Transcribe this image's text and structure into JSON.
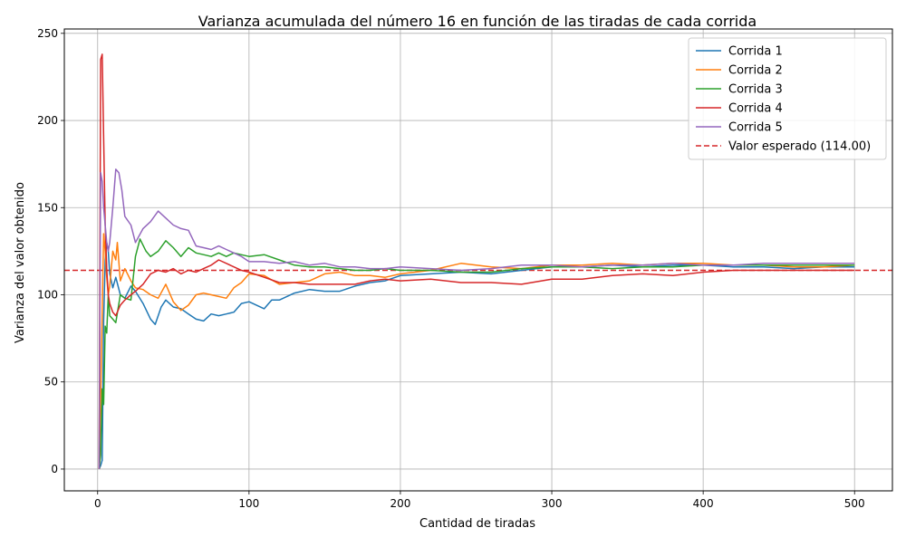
{
  "chart_data": {
    "type": "line",
    "title": "Varianza acumulada del número 16 en función de las tiradas de cada corrida",
    "xlabel": "Cantidad de tiradas",
    "ylabel": "Varianza del valor obtenido",
    "xlim": [
      -22,
      525
    ],
    "ylim": [
      -12.5,
      252.5
    ],
    "xticks": [
      0,
      100,
      200,
      300,
      400,
      500
    ],
    "yticks": [
      0,
      50,
      100,
      150,
      200,
      250
    ],
    "grid": true,
    "legend_position": "top-right",
    "reference_line": {
      "label": "Valor esperado (114.00)",
      "y": 114.0,
      "color": "#d62728",
      "style": "dashed"
    },
    "series": [
      {
        "name": "Corrida 1",
        "color": "#1f77b4",
        "points": [
          [
            1,
            0
          ],
          [
            2,
            2
          ],
          [
            3,
            5
          ],
          [
            4,
            85
          ],
          [
            5,
            120
          ],
          [
            6,
            130
          ],
          [
            7,
            125
          ],
          [
            8,
            112
          ],
          [
            10,
            104
          ],
          [
            12,
            110
          ],
          [
            15,
            100
          ],
          [
            18,
            98
          ],
          [
            22,
            105
          ],
          [
            25,
            102
          ],
          [
            30,
            95
          ],
          [
            35,
            86
          ],
          [
            38,
            83
          ],
          [
            42,
            93
          ],
          [
            45,
            97
          ],
          [
            50,
            93
          ],
          [
            55,
            92
          ],
          [
            60,
            89
          ],
          [
            65,
            86
          ],
          [
            70,
            85
          ],
          [
            75,
            89
          ],
          [
            80,
            88
          ],
          [
            85,
            89
          ],
          [
            90,
            90
          ],
          [
            95,
            95
          ],
          [
            100,
            96
          ],
          [
            110,
            92
          ],
          [
            115,
            97
          ],
          [
            120,
            97
          ],
          [
            130,
            101
          ],
          [
            140,
            103
          ],
          [
            150,
            102
          ],
          [
            160,
            102
          ],
          [
            170,
            105
          ],
          [
            180,
            107
          ],
          [
            190,
            108
          ],
          [
            200,
            111
          ],
          [
            220,
            112
          ],
          [
            240,
            113
          ],
          [
            260,
            112
          ],
          [
            280,
            114
          ],
          [
            300,
            116
          ],
          [
            320,
            116
          ],
          [
            340,
            117
          ],
          [
            360,
            116
          ],
          [
            380,
            117
          ],
          [
            400,
            117
          ],
          [
            420,
            116
          ],
          [
            440,
            116
          ],
          [
            460,
            115
          ],
          [
            480,
            116
          ],
          [
            500,
            116
          ]
        ]
      },
      {
        "name": "Corrida 2",
        "color": "#ff7f0e",
        "points": [
          [
            1,
            0
          ],
          [
            2,
            40
          ],
          [
            3,
            90
          ],
          [
            4,
            135
          ],
          [
            5,
            125
          ],
          [
            6,
            110
          ],
          [
            7,
            100
          ],
          [
            8,
            105
          ],
          [
            10,
            125
          ],
          [
            12,
            120
          ],
          [
            13,
            130
          ],
          [
            15,
            108
          ],
          [
            18,
            115
          ],
          [
            22,
            108
          ],
          [
            25,
            104
          ],
          [
            30,
            103
          ],
          [
            35,
            100
          ],
          [
            40,
            98
          ],
          [
            45,
            106
          ],
          [
            50,
            96
          ],
          [
            55,
            91
          ],
          [
            60,
            94
          ],
          [
            65,
            100
          ],
          [
            70,
            101
          ],
          [
            80,
            99
          ],
          [
            85,
            98
          ],
          [
            90,
            104
          ],
          [
            95,
            107
          ],
          [
            100,
            112
          ],
          [
            110,
            111
          ],
          [
            120,
            106
          ],
          [
            130,
            107
          ],
          [
            140,
            108
          ],
          [
            150,
            112
          ],
          [
            160,
            113
          ],
          [
            170,
            111
          ],
          [
            180,
            111
          ],
          [
            190,
            110
          ],
          [
            200,
            112
          ],
          [
            220,
            114
          ],
          [
            240,
            118
          ],
          [
            260,
            116
          ],
          [
            280,
            115
          ],
          [
            300,
            117
          ],
          [
            320,
            117
          ],
          [
            340,
            118
          ],
          [
            360,
            117
          ],
          [
            380,
            118
          ],
          [
            400,
            118
          ],
          [
            420,
            117
          ],
          [
            440,
            117
          ],
          [
            460,
            116
          ],
          [
            480,
            116
          ],
          [
            500,
            117
          ]
        ]
      },
      {
        "name": "Corrida 3",
        "color": "#2ca02c",
        "points": [
          [
            1,
            0
          ],
          [
            2,
            8
          ],
          [
            3,
            46
          ],
          [
            4,
            37
          ],
          [
            5,
            82
          ],
          [
            6,
            78
          ],
          [
            7,
            100
          ],
          [
            8,
            88
          ],
          [
            10,
            86
          ],
          [
            12,
            84
          ],
          [
            15,
            100
          ],
          [
            18,
            98
          ],
          [
            22,
            97
          ],
          [
            25,
            122
          ],
          [
            28,
            132
          ],
          [
            32,
            125
          ],
          [
            35,
            122
          ],
          [
            40,
            125
          ],
          [
            45,
            131
          ],
          [
            50,
            127
          ],
          [
            55,
            122
          ],
          [
            60,
            127
          ],
          [
            65,
            124
          ],
          [
            70,
            123
          ],
          [
            75,
            122
          ],
          [
            80,
            124
          ],
          [
            85,
            122
          ],
          [
            90,
            124
          ],
          [
            100,
            122
          ],
          [
            110,
            123
          ],
          [
            120,
            120
          ],
          [
            130,
            117
          ],
          [
            140,
            116
          ],
          [
            150,
            116
          ],
          [
            160,
            115
          ],
          [
            170,
            114
          ],
          [
            180,
            114
          ],
          [
            190,
            115
          ],
          [
            200,
            114
          ],
          [
            220,
            114
          ],
          [
            240,
            113
          ],
          [
            260,
            113
          ],
          [
            280,
            115
          ],
          [
            300,
            116
          ],
          [
            320,
            116
          ],
          [
            340,
            115
          ],
          [
            360,
            116
          ],
          [
            380,
            116
          ],
          [
            400,
            117
          ],
          [
            420,
            117
          ],
          [
            440,
            117
          ],
          [
            460,
            117
          ],
          [
            480,
            117
          ],
          [
            500,
            117
          ]
        ]
      },
      {
        "name": "Corrida 4",
        "color": "#d62728",
        "points": [
          [
            1,
            0
          ],
          [
            2,
            235
          ],
          [
            3,
            238
          ],
          [
            4,
            190
          ],
          [
            5,
            140
          ],
          [
            6,
            115
          ],
          [
            7,
            100
          ],
          [
            8,
            95
          ],
          [
            10,
            90
          ],
          [
            12,
            88
          ],
          [
            15,
            94
          ],
          [
            18,
            97
          ],
          [
            22,
            100
          ],
          [
            25,
            102
          ],
          [
            30,
            106
          ],
          [
            35,
            112
          ],
          [
            40,
            114
          ],
          [
            45,
            113
          ],
          [
            50,
            115
          ],
          [
            55,
            112
          ],
          [
            60,
            114
          ],
          [
            65,
            113
          ],
          [
            70,
            115
          ],
          [
            75,
            117
          ],
          [
            80,
            120
          ],
          [
            85,
            118
          ],
          [
            90,
            116
          ],
          [
            95,
            114
          ],
          [
            100,
            113
          ],
          [
            110,
            110
          ],
          [
            120,
            107
          ],
          [
            130,
            107
          ],
          [
            140,
            106
          ],
          [
            150,
            106
          ],
          [
            160,
            106
          ],
          [
            170,
            106
          ],
          [
            180,
            108
          ],
          [
            190,
            109
          ],
          [
            200,
            108
          ],
          [
            220,
            109
          ],
          [
            240,
            107
          ],
          [
            260,
            107
          ],
          [
            280,
            106
          ],
          [
            300,
            109
          ],
          [
            320,
            109
          ],
          [
            340,
            111
          ],
          [
            360,
            112
          ],
          [
            380,
            111
          ],
          [
            400,
            113
          ],
          [
            420,
            114
          ],
          [
            440,
            114
          ],
          [
            460,
            114
          ],
          [
            480,
            114
          ],
          [
            500,
            114
          ]
        ]
      },
      {
        "name": "Corrida 5",
        "color": "#9467bd",
        "points": [
          [
            1,
            0
          ],
          [
            2,
            170
          ],
          [
            3,
            165
          ],
          [
            4,
            150
          ],
          [
            5,
            140
          ],
          [
            6,
            130
          ],
          [
            7,
            125
          ],
          [
            8,
            130
          ],
          [
            10,
            150
          ],
          [
            12,
            172
          ],
          [
            14,
            170
          ],
          [
            16,
            160
          ],
          [
            18,
            145
          ],
          [
            22,
            140
          ],
          [
            25,
            130
          ],
          [
            30,
            138
          ],
          [
            35,
            142
          ],
          [
            40,
            148
          ],
          [
            45,
            144
          ],
          [
            50,
            140
          ],
          [
            55,
            138
          ],
          [
            60,
            137
          ],
          [
            65,
            128
          ],
          [
            70,
            127
          ],
          [
            75,
            126
          ],
          [
            80,
            128
          ],
          [
            85,
            126
          ],
          [
            90,
            124
          ],
          [
            95,
            122
          ],
          [
            100,
            119
          ],
          [
            110,
            119
          ],
          [
            120,
            118
          ],
          [
            130,
            119
          ],
          [
            140,
            117
          ],
          [
            150,
            118
          ],
          [
            160,
            116
          ],
          [
            170,
            116
          ],
          [
            180,
            115
          ],
          [
            190,
            115
          ],
          [
            200,
            116
          ],
          [
            220,
            115
          ],
          [
            240,
            114
          ],
          [
            260,
            115
          ],
          [
            280,
            117
          ],
          [
            300,
            117
          ],
          [
            320,
            116
          ],
          [
            340,
            117
          ],
          [
            360,
            117
          ],
          [
            380,
            118
          ],
          [
            400,
            117
          ],
          [
            420,
            117
          ],
          [
            440,
            118
          ],
          [
            460,
            118
          ],
          [
            480,
            118
          ],
          [
            500,
            118
          ]
        ]
      }
    ]
  }
}
